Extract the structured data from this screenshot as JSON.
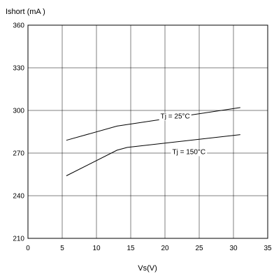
{
  "chart_data": {
    "type": "line",
    "ylabel": "Ishort (mA )",
    "xlabel": "Vs(V)",
    "xlim": [
      0,
      35
    ],
    "ylim": [
      210,
      360
    ],
    "xticks": [
      0,
      5,
      10,
      15,
      20,
      25,
      30,
      35
    ],
    "yticks": [
      210,
      240,
      270,
      300,
      330,
      360
    ],
    "grid": true,
    "series": [
      {
        "name": "Tj = 25°C",
        "x": [
          5.6,
          13,
          31
        ],
        "y": [
          279,
          289,
          302
        ]
      },
      {
        "name": "Tj = 150°C",
        "x": [
          5.6,
          13,
          14.5,
          31
        ],
        "y": [
          254,
          272,
          274,
          283
        ]
      }
    ],
    "annotations": [
      {
        "text": "Tj =  25°C",
        "x": 21.5,
        "y": 296
      },
      {
        "text": "Tj = 150°C",
        "x": 23.5,
        "y": 271
      }
    ]
  }
}
